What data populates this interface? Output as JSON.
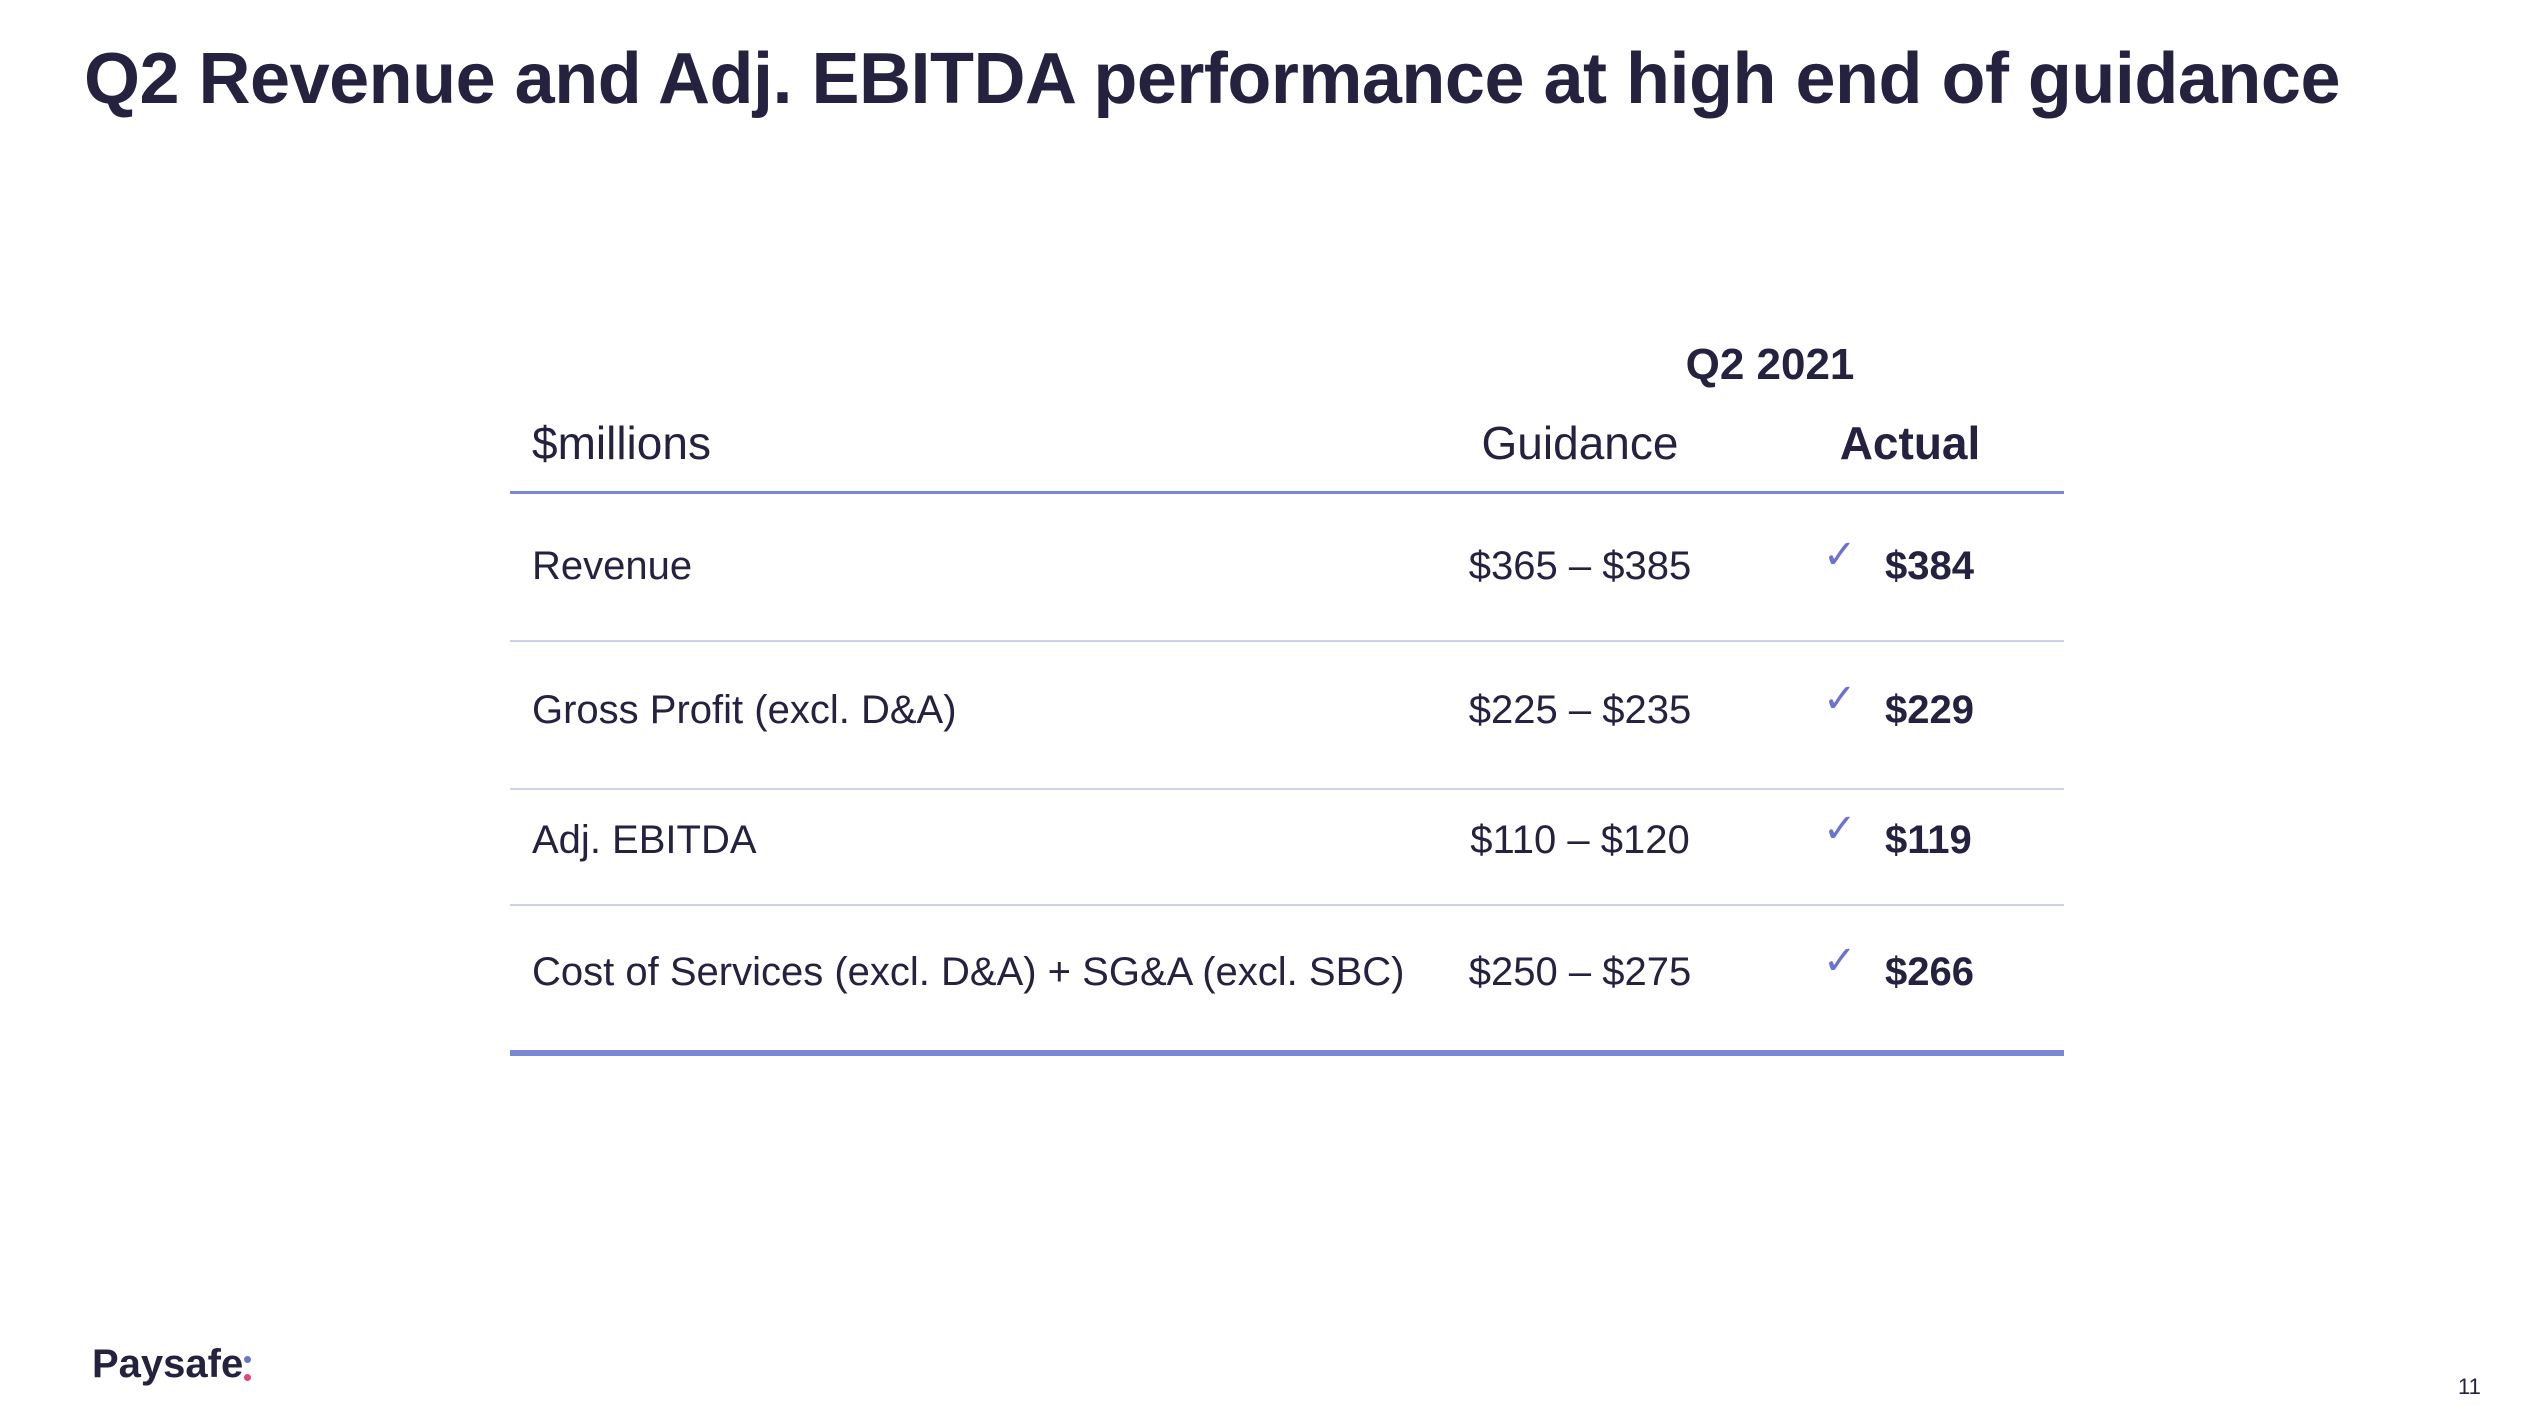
{
  "slide": {
    "title": "Q2 Revenue and Adj. EBITDA performance at high end of guidance",
    "page_number": "11"
  },
  "table": {
    "period_header": "Q2 2021",
    "columns": {
      "label": "$millions",
      "guidance": "Guidance",
      "actual": "Actual"
    },
    "rows": [
      {
        "label": "Revenue",
        "guidance": "$365 – $385",
        "check": "✓",
        "actual": "$384"
      },
      {
        "label": "Gross Profit (excl. D&A)",
        "guidance": "$225 – $235",
        "check": "✓",
        "actual": "$229"
      },
      {
        "label": "Adj. EBITDA",
        "guidance": "$110 – $120",
        "check": "✓",
        "actual": "$119"
      },
      {
        "label": "Cost of Services (excl. D&A) + SG&A (excl. SBC)",
        "guidance": "$250 – $275",
        "check": "✓",
        "actual": "$266"
      }
    ]
  },
  "brand": {
    "logo_text": "Paysafe",
    "colors": {
      "text": "#25223f",
      "accent": "#7c86d6",
      "logo_dot_top": "#6a74d0",
      "logo_dot_bottom": "#e0457b"
    }
  }
}
